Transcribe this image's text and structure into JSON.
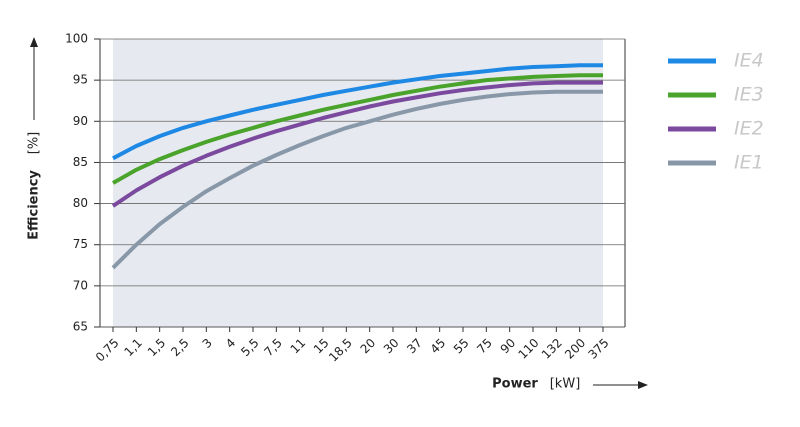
{
  "chart_data": {
    "type": "line",
    "ylabel": "Efficiency",
    "ylabel_unit": "[%]",
    "xlabel": "Power",
    "xlabel_unit": "[kW]",
    "categories": [
      "0,75",
      "1,1",
      "1,5",
      "2,5",
      "3",
      "4",
      "5,5",
      "7,5",
      "11",
      "15",
      "18,5",
      "20",
      "30",
      "37",
      "45",
      "55",
      "75",
      "90",
      "110",
      "132",
      "200",
      "375"
    ],
    "ylim": [
      65,
      100
    ],
    "yticks": [
      65,
      70,
      75,
      80,
      85,
      90,
      95,
      100
    ],
    "grid": true,
    "series": [
      {
        "name": "IE4",
        "color": "#1e88e5",
        "values": [
          85.5,
          87,
          88.2,
          89.2,
          90,
          90.7,
          91.4,
          92,
          92.6,
          93.2,
          93.7,
          94.2,
          94.7,
          95.1,
          95.5,
          95.8,
          96.1,
          96.4,
          96.6,
          96.7,
          96.8,
          96.8
        ]
      },
      {
        "name": "IE3",
        "color": "#4aa32a",
        "values": [
          82.5,
          84.1,
          85.4,
          86.5,
          87.5,
          88.4,
          89.2,
          90,
          90.7,
          91.4,
          92,
          92.6,
          93.2,
          93.7,
          94.2,
          94.6,
          95,
          95.2,
          95.4,
          95.5,
          95.6,
          95.6
        ]
      },
      {
        "name": "IE2",
        "color": "#7b4a9e",
        "values": [
          79.7,
          81.6,
          83.2,
          84.6,
          85.8,
          86.9,
          87.9,
          88.8,
          89.6,
          90.4,
          91.1,
          91.8,
          92.4,
          92.9,
          93.4,
          93.8,
          94.1,
          94.4,
          94.6,
          94.7,
          94.7,
          94.7
        ]
      },
      {
        "name": "IE1",
        "color": "#8898a8",
        "values": [
          72.2,
          75,
          77.5,
          79.6,
          81.5,
          83.1,
          84.6,
          85.9,
          87.1,
          88.2,
          89.2,
          90,
          90.8,
          91.5,
          92.1,
          92.6,
          93,
          93.3,
          93.5,
          93.6,
          93.6,
          93.6
        ]
      }
    ]
  }
}
